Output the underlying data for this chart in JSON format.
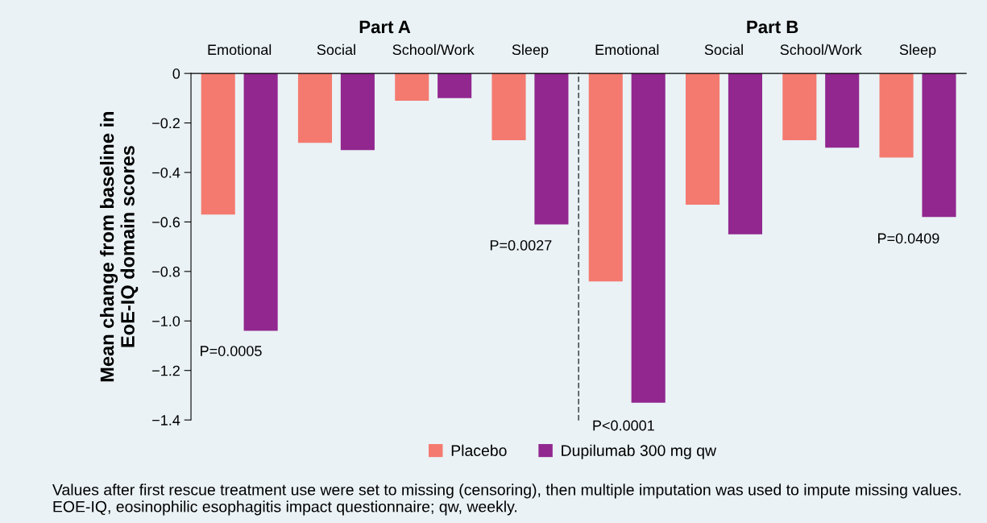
{
  "chart_data": [
    {
      "type": "bar",
      "title": "Part A",
      "ylabel": "Mean change from baseline in\nEoE-IQ domain scores",
      "categories": [
        "Emotional",
        "Social",
        "School/Work",
        "Sleep"
      ],
      "series": [
        {
          "name": "Placebo",
          "color": "#f47a70",
          "values": [
            -0.57,
            -0.28,
            -0.11,
            -0.27
          ]
        },
        {
          "name": "Dupilumab 300 mg qw",
          "color": "#92278f",
          "values": [
            -1.04,
            -0.31,
            -0.1,
            -0.61
          ]
        }
      ],
      "ylim": [
        -1.4,
        0
      ],
      "yticks": [
        {
          "value": 0,
          "label": "0"
        },
        {
          "value": -0.2,
          "label": "−0.2"
        },
        {
          "value": -0.4,
          "label": "−0.4"
        },
        {
          "value": -0.6,
          "label": "−0.6"
        },
        {
          "value": -0.8,
          "label": "−0.8"
        },
        {
          "value": -1.0,
          "label": "−1.0"
        },
        {
          "value": -1.2,
          "label": "−1.2"
        },
        {
          "value": -1.4,
          "label": "−1.4"
        }
      ],
      "annotations": [
        "P=0.0005",
        "P=0.0027",
        "Values after first rescue treatment use were set to missing (censoring), then multiple imputation was used to impute missing values. EOE-IQ, eosinophilic esophagitis impact questionnaire; qw, weekly."
      ],
      "legend": "bottom",
      "grid": false
    },
    {
      "type": "bar",
      "title": "Part B",
      "categories": [
        "Emotional",
        "Social",
        "School/Work",
        "Sleep"
      ],
      "series": [
        {
          "color": "#f47a70",
          "values": [
            -0.84,
            -0.53,
            -0.27,
            -0.34
          ]
        },
        {
          "color": "#92278f",
          "values": [
            -1.33,
            -0.65,
            -0.3,
            -0.58
          ]
        }
      ],
      "ylim": [
        -1.4,
        0
      ],
      "tick_labels": "x",
      "annotations": [
        "P<0.0001",
        "P=0.0409"
      ],
      "grid": false
    }
  ]
}
